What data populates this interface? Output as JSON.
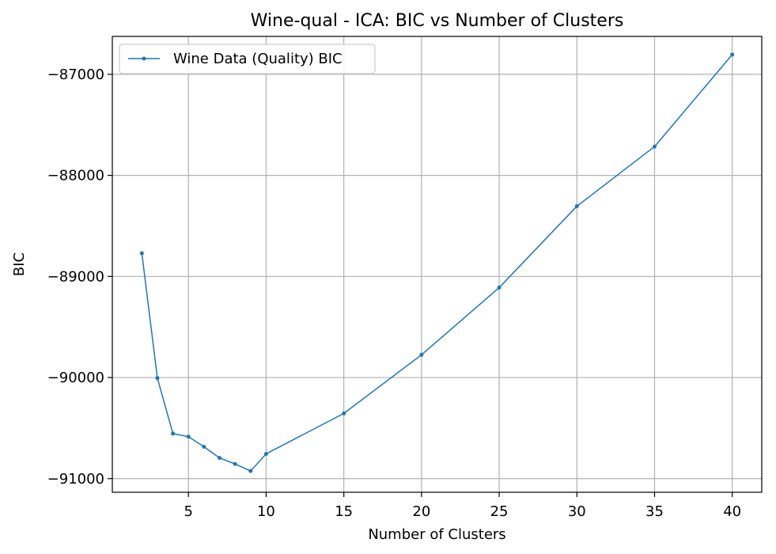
{
  "chart_data": {
    "type": "line",
    "title": "Wine-qual - ICA: BIC vs Number of Clusters",
    "xlabel": "Number of Clusters",
    "ylabel": "BIC",
    "xlim": [
      0.1,
      41.9
    ],
    "ylim": [
      -91135,
      -86625
    ],
    "xticks": [
      5,
      10,
      15,
      20,
      25,
      30,
      35,
      40
    ],
    "xtick_labels": [
      "5",
      "10",
      "15",
      "20",
      "25",
      "30",
      "35",
      "40"
    ],
    "yticks": [
      -87000,
      -88000,
      -89000,
      -90000,
      -91000
    ],
    "ytick_labels": [
      "−87000",
      "−88000",
      "−89000",
      "−90000",
      "−91000"
    ],
    "grid": true,
    "legend": {
      "placement": "top-left",
      "entries": [
        "Wine Data (Quality) BIC"
      ]
    },
    "series": [
      {
        "name": "Wine Data (Quality) BIC",
        "color": "#1f77b4",
        "x": [
          2,
          3,
          4,
          5,
          6,
          7,
          8,
          9,
          10,
          15,
          20,
          25,
          30,
          35,
          40
        ],
        "y": [
          -88770,
          -90005,
          -90555,
          -90585,
          -90685,
          -90795,
          -90855,
          -90925,
          -90755,
          -90355,
          -89775,
          -89110,
          -88305,
          -87715,
          -86805
        ]
      }
    ]
  }
}
